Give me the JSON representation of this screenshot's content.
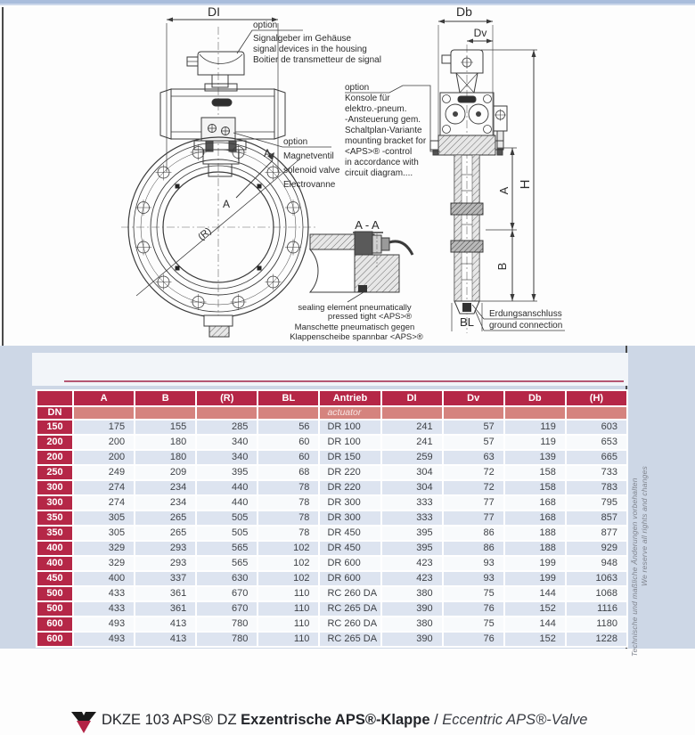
{
  "title": {
    "code": "DKZE 103 APS® DZ",
    "name_de": "Exzentrische APS®-Klappe",
    "sep": " / ",
    "name_en": "Eccentric APS®-Valve"
  },
  "drawing": {
    "dims": {
      "di": "DI",
      "db": "Db",
      "dv": "Dv",
      "h": "H",
      "a": "A",
      "b": "B",
      "bl": "BL",
      "r": "(R)",
      "section_a1": "A",
      "section_a2": "A",
      "section_title": "A - A"
    },
    "signal_note": [
      "option",
      "Signalgeber im Gehäuse",
      "signal devices in the housing",
      "Boitier de transmetteur de signal"
    ],
    "solenoid_note": [
      "option",
      "Magnetventil",
      "solenoid valve",
      "Electrovanne"
    ],
    "console_note": [
      "option",
      "Konsole für",
      "elektro.-pneum.",
      "-Ansteuerung gem.",
      "Schaltplan-Variante",
      "mounting bracket for",
      "<APS>® -control",
      "in accordance with",
      "circuit diagram...."
    ],
    "sealing_note": [
      "sealing element pneumatically",
      "pressed tight <APS>®",
      "Manschette pneumatisch gegen",
      "Klappenscheibe spannbar <APS>®"
    ],
    "ground_note": [
      "Erdungsanschluss",
      "ground connection"
    ]
  },
  "table": {
    "dn_label": "DN",
    "actuator_label": "actuator",
    "headers": [
      "A",
      "B",
      "(R)",
      "BL",
      "Antrieb",
      "DI",
      "Dv",
      "Db",
      "(H)"
    ],
    "rows": [
      [
        "150",
        "175",
        "155",
        "285",
        "56",
        "DR 100",
        "241",
        "57",
        "119",
        "603"
      ],
      [
        "200",
        "200",
        "180",
        "340",
        "60",
        "DR 100",
        "241",
        "57",
        "119",
        "653"
      ],
      [
        "200",
        "200",
        "180",
        "340",
        "60",
        "DR 150",
        "259",
        "63",
        "139",
        "665"
      ],
      [
        "250",
        "249",
        "209",
        "395",
        "68",
        "DR 220",
        "304",
        "72",
        "158",
        "733"
      ],
      [
        "300",
        "274",
        "234",
        "440",
        "78",
        "DR 220",
        "304",
        "72",
        "158",
        "783"
      ],
      [
        "300",
        "274",
        "234",
        "440",
        "78",
        "DR 300",
        "333",
        "77",
        "168",
        "795"
      ],
      [
        "350",
        "305",
        "265",
        "505",
        "78",
        "DR 300",
        "333",
        "77",
        "168",
        "857"
      ],
      [
        "350",
        "305",
        "265",
        "505",
        "78",
        "DR 450",
        "395",
        "86",
        "188",
        "877"
      ],
      [
        "400",
        "329",
        "293",
        "565",
        "102",
        "DR 450",
        "395",
        "86",
        "188",
        "929"
      ],
      [
        "400",
        "329",
        "293",
        "565",
        "102",
        "DR 600",
        "423",
        "93",
        "199",
        "948"
      ],
      [
        "450",
        "400",
        "337",
        "630",
        "102",
        "DR 600",
        "423",
        "93",
        "199",
        "1063"
      ],
      [
        "500",
        "433",
        "361",
        "670",
        "110",
        "RC 260 DA",
        "380",
        "75",
        "144",
        "1068"
      ],
      [
        "500",
        "433",
        "361",
        "670",
        "110",
        "RC 265 DA",
        "390",
        "76",
        "152",
        "1116"
      ],
      [
        "600",
        "493",
        "413",
        "780",
        "110",
        "RC 260 DA",
        "380",
        "75",
        "144",
        "1180"
      ],
      [
        "600",
        "493",
        "413",
        "780",
        "110",
        "RC 265 DA",
        "390",
        "76",
        "152",
        "1228"
      ]
    ]
  },
  "side_text": {
    "line_en": "We reserve all rights and changes",
    "line_de": "Technische und maßliche Änderungen vorbehalten"
  },
  "colors": {
    "crimson": "#b52747",
    "salmon": "#d5837e",
    "row_alt": "#dde4f0",
    "page_bg": "#cdd7e6"
  }
}
